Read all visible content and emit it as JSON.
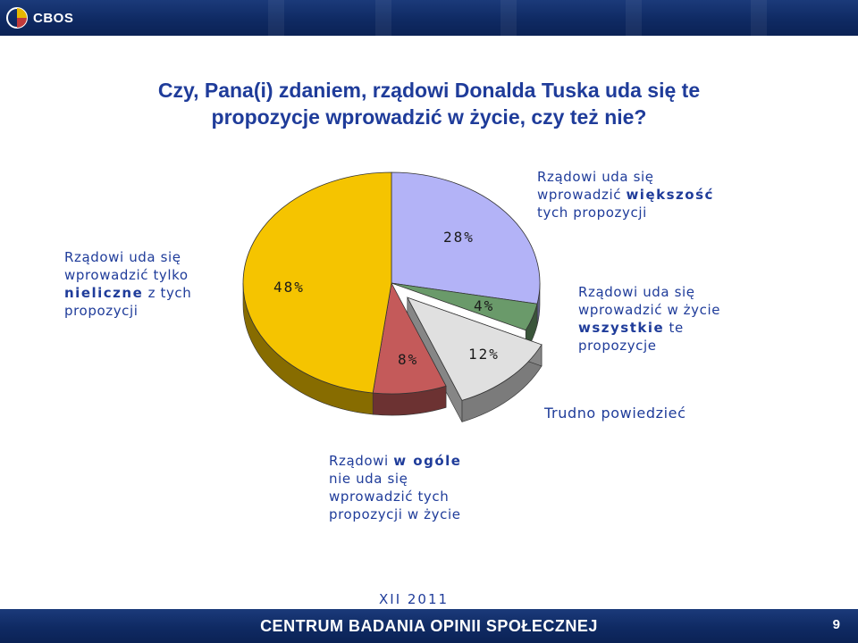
{
  "header": {
    "logo_text": "CBOS",
    "logo_icon": "cbos-logo-icon"
  },
  "title": {
    "line1": "Czy, Pana(i) zdaniem, rządowi Donalda Tuska uda się te",
    "line2": "propozycje wprowadzić w życie, czy też nie?"
  },
  "labels": {
    "left": {
      "l1": "Rządowi uda się",
      "l2": "wprowadzić tylko",
      "l3_bold": "nieliczne",
      "l3": " z tych",
      "l4": "propozycji"
    },
    "top_right": {
      "l1": "Rządowi uda się",
      "l2": "wprowadzić ",
      "l2_bold": "większość",
      "l3": "tych propozycji"
    },
    "right": {
      "l1": "Rządowi uda się",
      "l2": "wprowadzić w życie",
      "l3_bold": "wszystkie",
      "l3": " te",
      "l4": "propozycje"
    },
    "difficult": "Trudno powiedzieć",
    "bottom": {
      "l1": "Rządowi ",
      "l1_bold": "w ogóle",
      "l2": "nie uda się",
      "l3": "wprowadzić tych",
      "l4": "propozycji w życie"
    }
  },
  "chart_data": {
    "type": "pie",
    "title": "Czy, Pana(i) zdaniem, rządowi Donalda Tuska uda się te propozycje wprowadzić w życie, czy też nie?",
    "slices": [
      {
        "name": "Rządowi uda się wprowadzić tylko nieliczne z tych propozycji",
        "value": 48,
        "label": "48%",
        "color": "#f5c400"
      },
      {
        "name": "Rządowi uda się wprowadzić większość tych propozycji",
        "value": 28,
        "label": "28%",
        "color": "#b3b3f7"
      },
      {
        "name": "Rządowi uda się wprowadzić w życie wszystkie te propozycje",
        "value": 4,
        "label": "4%",
        "color": "#6a9a6a"
      },
      {
        "name": "Trudno powiedzieć",
        "value": 12,
        "label": "12%",
        "color": "#e0e0e0",
        "exploded": true
      },
      {
        "name": "Rządowi w ogóle nie uda się wprowadzić tych propozycji w życie",
        "value": 8,
        "label": "8%",
        "color": "#c45a5a"
      }
    ]
  },
  "footer": {
    "date": "XII 2011",
    "organization": "CENTRUM BADANIA OPINII SPOŁECZNEJ",
    "page_number": "9"
  }
}
